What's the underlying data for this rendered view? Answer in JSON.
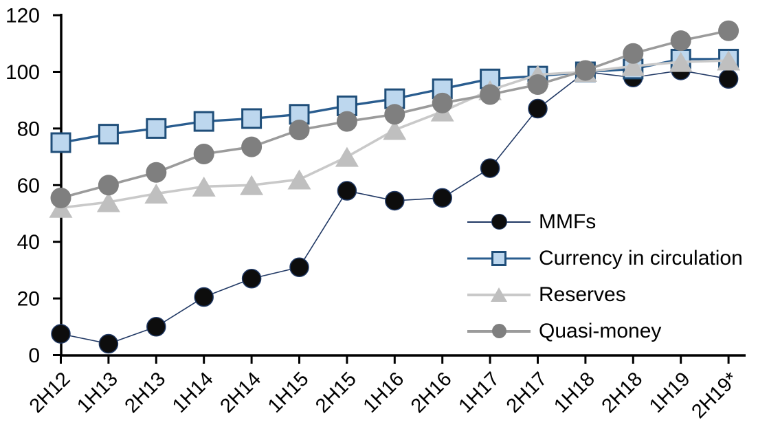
{
  "chart_data": {
    "type": "line",
    "title": "",
    "xlabel": "",
    "ylabel": "",
    "grid": false,
    "legend_position": "inside-right-middle",
    "ylim": [
      0,
      120
    ],
    "yticks": [
      0,
      20,
      40,
      60,
      80,
      100,
      120
    ],
    "categories": [
      "2H12",
      "1H13",
      "2H13",
      "1H14",
      "2H14",
      "1H15",
      "2H15",
      "1H16",
      "2H16",
      "1H17",
      "2H17",
      "1H18",
      "2H18",
      "1H19",
      "2H19*"
    ],
    "axis_color": "#000000",
    "series": [
      {
        "name": "MMFs",
        "marker": "circle",
        "color": "#0d0d0d",
        "border_color": "#1f3864",
        "line_color": "#203864",
        "line_width": 1.6,
        "marker_size": 27,
        "values": [
          7.5,
          4,
          10,
          20.5,
          27,
          31,
          58,
          54.5,
          55.5,
          66,
          87,
          100,
          98,
          100.5,
          97.5
        ]
      },
      {
        "name": "Currency in circulation",
        "marker": "square",
        "color": "#bdd7ee",
        "border_color": "#1f4e79",
        "line_color": "#2a5d8f",
        "line_width": 3.4,
        "marker_size": 27,
        "values": [
          75,
          78,
          80,
          82.5,
          83.5,
          85,
          88,
          90.5,
          94,
          97.5,
          98.5,
          100,
          101,
          104.5,
          104.5
        ]
      },
      {
        "name": "Reserves",
        "marker": "triangle",
        "color": "#bfbfbf",
        "border_color": "",
        "line_color": "#c9c9c9",
        "line_width": 3.6,
        "marker_size": 29,
        "values": [
          52,
          54,
          57,
          59.5,
          60,
          62,
          70,
          79.5,
          86,
          93.5,
          99,
          100,
          102,
          103.5,
          104
        ]
      },
      {
        "name": "Quasi-money",
        "marker": "circle",
        "color": "#7f7f7f",
        "border_color": "",
        "line_color": "#9b9b9b",
        "line_width": 3.6,
        "marker_size": 30,
        "values": [
          55.5,
          60,
          64.5,
          71,
          73.5,
          79.5,
          82.5,
          85,
          89,
          92,
          95.5,
          100.5,
          106.5,
          111,
          114.5
        ]
      }
    ]
  }
}
